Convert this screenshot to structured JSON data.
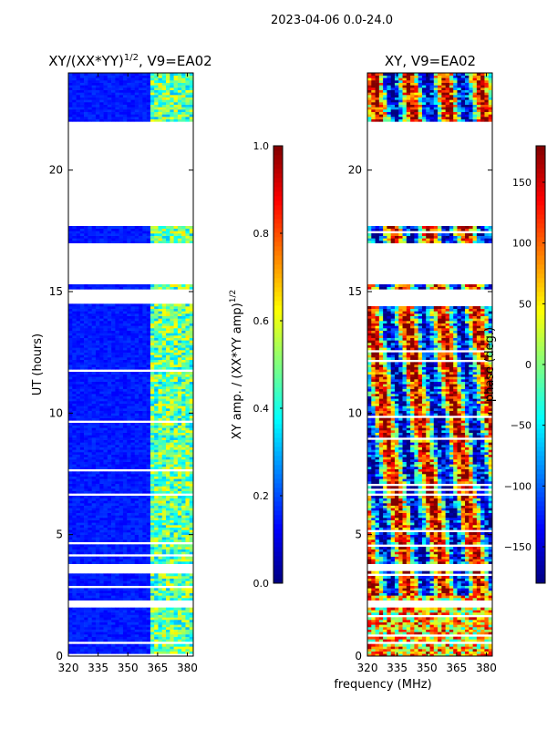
{
  "suptitle": "2023-04-06 0.0-24.0",
  "colors": {
    "blank": "#ffffff",
    "frame": "#000000"
  },
  "chart_data": [
    {
      "type": "heatmap",
      "title_base": "XY/(XX*YY)",
      "title_sup": "1/2",
      "title_suffix": ", V9=EA02",
      "xlabel": "",
      "ylabel": "UT (hours)",
      "xlim": [
        320,
        383
      ],
      "ylim": [
        0,
        24
      ],
      "xticks": [
        "320",
        "335",
        "350",
        "365",
        "380"
      ],
      "xtick_values": [
        320,
        335,
        350,
        365,
        380
      ],
      "yticks": [
        "0",
        "5",
        "10",
        "15",
        "20"
      ],
      "ytick_values": [
        0,
        5,
        10,
        15,
        20
      ],
      "colormap": "jet",
      "value_range": [
        0.0,
        1.0
      ],
      "colorbar": {
        "label_base": "XY amp. / (XX*YY amp)",
        "label_sup": "1/2",
        "ticks": [
          "0.0",
          "0.2",
          "0.4",
          "0.6",
          "0.8",
          "1.0"
        ],
        "tick_values": [
          0.0,
          0.2,
          0.4,
          0.6,
          0.8,
          1.0
        ]
      },
      "blank_time_ranges_hours": [
        [
          21.4,
          22.0
        ],
        [
          17.7,
          21.4
        ],
        [
          15.3,
          17.0
        ],
        [
          14.5,
          15.1
        ],
        [
          3.5,
          3.8
        ],
        [
          2.0,
          2.3
        ],
        [
          0.5,
          0.6
        ]
      ],
      "bright_frequency_band_MHz": [
        362,
        383
      ],
      "background_level": 0.12,
      "band_level_range": [
        0.3,
        0.65
      ]
    },
    {
      "type": "heatmap",
      "title": "XY, V9=EA02",
      "xlabel": "frequency (MHz)",
      "ylabel": "",
      "xlim": [
        320,
        383
      ],
      "ylim": [
        0,
        24
      ],
      "xticks": [
        "320",
        "335",
        "350",
        "365",
        "380"
      ],
      "xtick_values": [
        320,
        335,
        350,
        365,
        380
      ],
      "yticks": [
        "0",
        "5",
        "10",
        "15",
        "20"
      ],
      "ytick_values": [
        0,
        5,
        10,
        15,
        20
      ],
      "colormap": "jet",
      "value_range": [
        -180,
        180
      ],
      "colorbar": {
        "label": "phase (deg.)",
        "ticks": [
          "−150",
          "−100",
          "−50",
          "0",
          "50",
          "100",
          "150"
        ],
        "tick_values": [
          -150,
          -100,
          -50,
          0,
          50,
          100,
          150
        ]
      },
      "blank_time_ranges_hours": [
        [
          21.4,
          22.0
        ],
        [
          17.7,
          21.4
        ],
        [
          15.3,
          17.0
        ],
        [
          14.5,
          15.1
        ],
        [
          3.5,
          3.8
        ],
        [
          2.0,
          2.3
        ],
        [
          0.5,
          0.6
        ]
      ]
    }
  ]
}
